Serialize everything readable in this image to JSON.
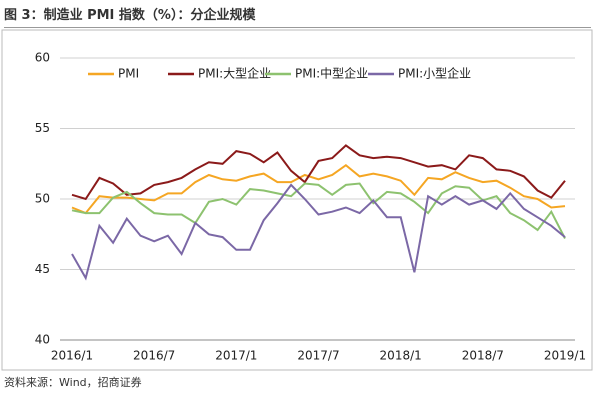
{
  "chart_data": {
    "type": "line",
    "title": "图 3：制造业 PMI 指数（%）：分企业规模",
    "source": "资料来源：Wind，招商证券",
    "categories": [
      "2016/1",
      null,
      null,
      null,
      null,
      null,
      "2016/7",
      null,
      null,
      null,
      null,
      null,
      "2017/1",
      null,
      null,
      null,
      null,
      null,
      "2017/7",
      null,
      null,
      null,
      null,
      null,
      "2018/1",
      null,
      null,
      null,
      null,
      null,
      "2018/7",
      null,
      null,
      null,
      null,
      null,
      "2019/1"
    ],
    "series": [
      {
        "name": "PMI",
        "color": "#f5a623",
        "values": [
          49.4,
          49.0,
          50.2,
          50.1,
          50.1,
          50.0,
          49.9,
          50.4,
          50.4,
          51.2,
          51.7,
          51.4,
          51.3,
          51.6,
          51.8,
          51.2,
          51.2,
          51.7,
          51.4,
          51.7,
          52.4,
          51.6,
          51.8,
          51.6,
          51.3,
          50.3,
          51.5,
          51.4,
          51.9,
          51.5,
          51.2,
          51.3,
          50.8,
          50.2,
          50.0,
          49.4,
          49.5
        ]
      },
      {
        "name": "PMI:大型企业",
        "color": "#8b1a1a",
        "values": [
          50.3,
          50.0,
          51.5,
          51.1,
          50.3,
          50.4,
          51.0,
          51.2,
          51.5,
          52.1,
          52.6,
          52.5,
          53.4,
          53.2,
          52.6,
          53.3,
          52.0,
          51.2,
          52.7,
          52.9,
          53.8,
          53.1,
          52.9,
          53.0,
          52.9,
          52.6,
          52.3,
          52.4,
          52.1,
          53.1,
          52.9,
          52.1,
          52.0,
          51.6,
          50.6,
          50.1,
          51.3
        ]
      },
      {
        "name": "PMI:中型企业",
        "color": "#8dc26f",
        "values": [
          49.2,
          49.0,
          49.0,
          50.1,
          50.5,
          49.7,
          49.0,
          48.9,
          48.9,
          48.3,
          49.8,
          50.0,
          49.6,
          50.7,
          50.6,
          50.4,
          50.2,
          51.1,
          51.0,
          50.3,
          51.0,
          51.1,
          49.7,
          50.5,
          50.4,
          49.8,
          49.0,
          50.4,
          50.9,
          50.8,
          49.9,
          50.2,
          49.0,
          48.5,
          47.8,
          49.1,
          47.2
        ]
      },
      {
        "name": "PMI:小型企业",
        "color": "#7b68a6",
        "values": [
          46.1,
          44.4,
          48.1,
          46.9,
          48.6,
          47.4,
          47.0,
          47.4,
          46.1,
          48.3,
          47.5,
          47.3,
          46.4,
          46.4,
          48.5,
          49.7,
          51.0,
          50.0,
          48.9,
          49.1,
          49.4,
          49.0,
          49.9,
          48.7,
          48.7,
          44.8,
          50.2,
          49.6,
          50.2,
          49.6,
          49.9,
          49.3,
          50.4,
          49.3,
          48.7,
          48.1,
          47.3
        ]
      }
    ],
    "ylim": [
      40,
      60
    ],
    "yticks": [
      40,
      45,
      50,
      55,
      60
    ],
    "grid": true
  }
}
